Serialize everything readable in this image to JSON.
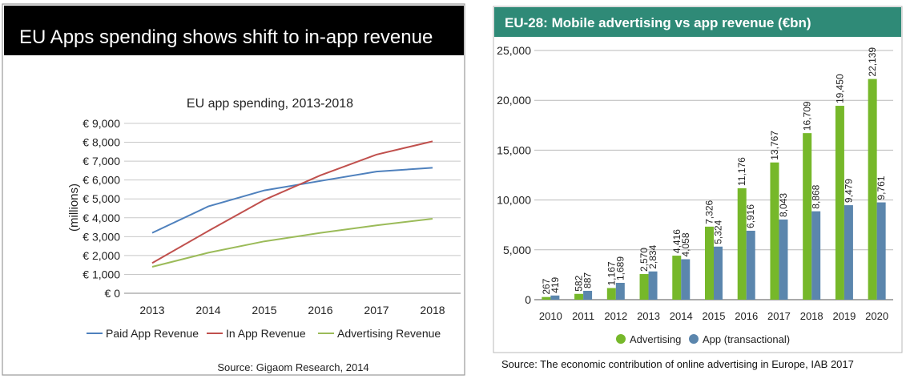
{
  "left_panel": {
    "banner_title": "EU Apps spending shows shift to in-app revenue",
    "source": "Source: Gigaom Research, 2014"
  },
  "right_panel": {
    "header_title": "EU-28: Mobile advertising vs app revenue (€bn)",
    "source": "Source: The economic contribution of online advertising in Europe, IAB 2017"
  },
  "colors": {
    "banner_bg": "#000000",
    "header_bg": "#2f8a77",
    "paid_app": "#4f81bd",
    "in_app": "#c0504d",
    "advertising_line": "#9bbb59",
    "advertising_bar": "#76b82a",
    "app_bar": "#5b86ad"
  },
  "chart_data": [
    {
      "type": "line",
      "title": "EU app spending, 2013-2018",
      "ylabel": "(millions)",
      "xlabel": "",
      "x": [
        "2013",
        "2014",
        "2015",
        "2016",
        "2017",
        "2018"
      ],
      "ylim": [
        0,
        9000
      ],
      "ytick_labels": [
        "€ 0",
        "€ 1,000",
        "€ 2,000",
        "€ 3,000",
        "€ 4,000",
        "€ 5,000",
        "€ 6,000",
        "€ 7,000",
        "€ 8,000",
        "€ 9,000"
      ],
      "grid": true,
      "legend": "bottom",
      "series": [
        {
          "name": "Paid App Revenue",
          "values": [
            3200,
            4600,
            5450,
            5950,
            6450,
            6650
          ]
        },
        {
          "name": "In App Revenue",
          "values": [
            1600,
            3300,
            4950,
            6250,
            7350,
            8050
          ]
        },
        {
          "name": "Advertising Revenue",
          "values": [
            1400,
            2150,
            2750,
            3200,
            3600,
            3950
          ]
        }
      ]
    },
    {
      "type": "bar",
      "title": "EU-28: Mobile advertising vs app revenue (€bn)",
      "categories": [
        "2010",
        "2011",
        "2012",
        "2013",
        "2014",
        "2015",
        "2016",
        "2017",
        "2018",
        "2019",
        "2020"
      ],
      "ylim": [
        0,
        25000
      ],
      "ytick_labels": [
        "0",
        "5,000",
        "10,000",
        "15,000",
        "20,000",
        "25,000"
      ],
      "grid": true,
      "legend": "bottom",
      "series": [
        {
          "name": "Advertising",
          "values": [
            267,
            582,
            1167,
            2570,
            4416,
            7326,
            11176,
            13767,
            16709,
            19450,
            22139
          ],
          "labels": [
            "267",
            "582",
            "1,167",
            "2,570",
            "4,416",
            "7,326",
            "11,176",
            "13,767",
            "16,709",
            "19,450",
            "22,139"
          ]
        },
        {
          "name": "App (transactional)",
          "values": [
            419,
            887,
            1689,
            2834,
            4058,
            5324,
            6916,
            8043,
            8868,
            9479,
            9761
          ],
          "labels": [
            "419",
            "887",
            "1,689",
            "2,834",
            "4,058",
            "5,324",
            "6,916",
            "8,043",
            "8,868",
            "9,479",
            "9,761"
          ]
        }
      ]
    }
  ]
}
